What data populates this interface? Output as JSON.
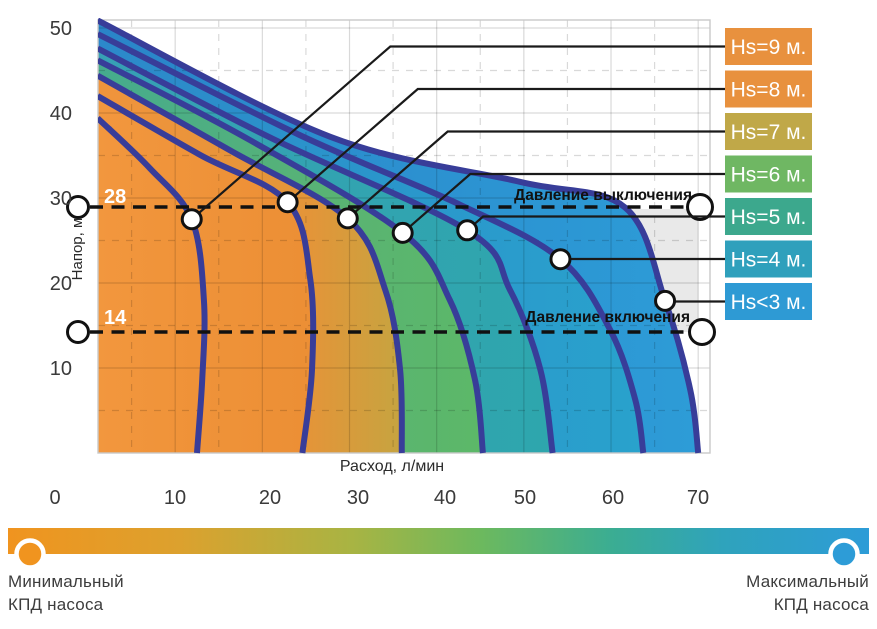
{
  "chart_data": {
    "type": "line",
    "title": "",
    "xlabel": "Расход, л/мин",
    "ylabel": "Напор, м",
    "x_ticks": [
      0,
      10,
      20,
      30,
      40,
      50,
      60,
      70
    ],
    "y_ticks": [
      10,
      20,
      30,
      40,
      50
    ],
    "xlim": [
      0,
      72
    ],
    "ylim": [
      0,
      52
    ],
    "grid": "solid every 10, dashed every 5",
    "curve_color": "#383D99",
    "gray_zone_color": "#E9E9E9",
    "reference_lines": [
      {
        "label": "Давление выключения",
        "value": 28,
        "value_label": "28"
      },
      {
        "label": "Давление включения",
        "value": 14,
        "value_label": "14"
      }
    ],
    "series": [
      {
        "key": "hs9",
        "label": "Hs=9 м.",
        "box_color": "#E8913E",
        "marker": {
          "q": 11.9,
          "h": 27.5
        },
        "q_max": 12.5,
        "points": [
          [
            1.1,
            39.4
          ],
          [
            7.1,
            33.5
          ],
          [
            11.9,
            27.5
          ],
          [
            13.3,
            18.0
          ],
          [
            13.1,
            8.6
          ],
          [
            12.5,
            0
          ]
        ],
        "fill_stops": [
          [
            0,
            "#F2973E"
          ],
          [
            1,
            "#EF9238"
          ]
        ]
      },
      {
        "key": "hs8",
        "label": "Hs=8 м.",
        "box_color": "#E8913E",
        "marker": {
          "q": 22.9,
          "h": 29.5
        },
        "q_max": 24.6,
        "points": [
          [
            1.1,
            42.0
          ],
          [
            12.8,
            35.1
          ],
          [
            22.9,
            29.5
          ],
          [
            25.5,
            20.4
          ],
          [
            25.7,
            9.8
          ],
          [
            24.6,
            0
          ]
        ],
        "fill_stops": [
          [
            0,
            "#F2973E"
          ],
          [
            1,
            "#EC8F35"
          ]
        ]
      },
      {
        "key": "hs7",
        "label": "Hs=7 м.",
        "box_color": "#C0A848",
        "marker": {
          "q": 29.8,
          "h": 27.6
        },
        "q_max": 36.0,
        "points": [
          [
            1.1,
            44.4
          ],
          [
            16.3,
            35.6
          ],
          [
            29.8,
            27.6
          ],
          [
            34.1,
            19.2
          ],
          [
            35.8,
            9.8
          ],
          [
            36.0,
            0
          ]
        ],
        "fill_stops": [
          [
            0,
            "#F0943C"
          ],
          [
            0.7,
            "#E39539"
          ],
          [
            1,
            "#C6A440"
          ]
        ]
      },
      {
        "key": "hs6",
        "label": "Hs=6 м.",
        "box_color": "#6FB763",
        "marker": {
          "q": 36.1,
          "h": 25.9
        },
        "q_max": 45.3,
        "points": [
          [
            1.1,
            46.2
          ],
          [
            18.6,
            36.8
          ],
          [
            36.1,
            25.9
          ],
          [
            41.5,
            18.0
          ],
          [
            44.4,
            8.6
          ],
          [
            45.3,
            0
          ]
        ],
        "fill_stops": [
          [
            0,
            "#45AB8E"
          ],
          [
            0.6,
            "#59B374"
          ],
          [
            1,
            "#5CB868"
          ]
        ]
      },
      {
        "key": "hs5",
        "label": "Hs=5 м.",
        "box_color": "#3CA88D",
        "marker": {
          "q": 43.5,
          "h": 26.2
        },
        "q_max": 53.3,
        "points": [
          [
            1.1,
            47.6
          ],
          [
            20.9,
            37.1
          ],
          [
            43.5,
            26.2
          ],
          [
            48.4,
            19.2
          ],
          [
            51.9,
            9.8
          ],
          [
            53.3,
            0
          ]
        ],
        "fill_stops": [
          [
            0,
            "#37A0B5"
          ],
          [
            1,
            "#2EA6AD"
          ]
        ]
      },
      {
        "key": "hs4",
        "label": "Hs=4 м.",
        "box_color": "#2FA0BC",
        "marker": {
          "q": 54.2,
          "h": 22.8
        },
        "q_max": 63.7,
        "points": [
          [
            1.1,
            49.3
          ],
          [
            24.3,
            37.4
          ],
          [
            42.7,
            29.2
          ],
          [
            54.2,
            22.8
          ],
          [
            59.9,
            14.5
          ],
          [
            62.8,
            6.2
          ],
          [
            63.7,
            0
          ]
        ],
        "fill_stops": [
          [
            0,
            "#2C88CA"
          ],
          [
            1,
            "#29A2CC"
          ]
        ]
      },
      {
        "key": "hs-lt3",
        "label": "Hs<3 м.",
        "box_color": "#2E9AD4",
        "marker": {
          "q": 66.2,
          "h": 17.9
        },
        "q_max": 70.0,
        "points": [
          [
            1.1,
            50.9
          ],
          [
            27.8,
            37.2
          ],
          [
            49.6,
            31.9
          ],
          [
            61.6,
            28.9
          ],
          [
            66.2,
            17.9
          ],
          [
            69.1,
            7.4
          ],
          [
            70.0,
            0
          ]
        ],
        "fill_stops": [
          [
            0,
            "#2A84C8"
          ],
          [
            1,
            "#2D9CD7"
          ]
        ]
      }
    ]
  },
  "efficiency_bar": {
    "min_label_line1": "Минимальный",
    "min_label_line2": "КПД насоса",
    "max_label_line1": "Максимальный",
    "max_label_line2": "КПД насоса",
    "min_color": "#F0941F",
    "max_color": "#2D9CD7",
    "gradient_stops": [
      [
        0,
        "#F0941F"
      ],
      [
        0.2,
        "#DCA12E"
      ],
      [
        0.4,
        "#A8B443"
      ],
      [
        0.55,
        "#6CB95E"
      ],
      [
        0.7,
        "#3BAD92"
      ],
      [
        0.83,
        "#2FA3BC"
      ],
      [
        1,
        "#2D9CD7"
      ]
    ]
  }
}
